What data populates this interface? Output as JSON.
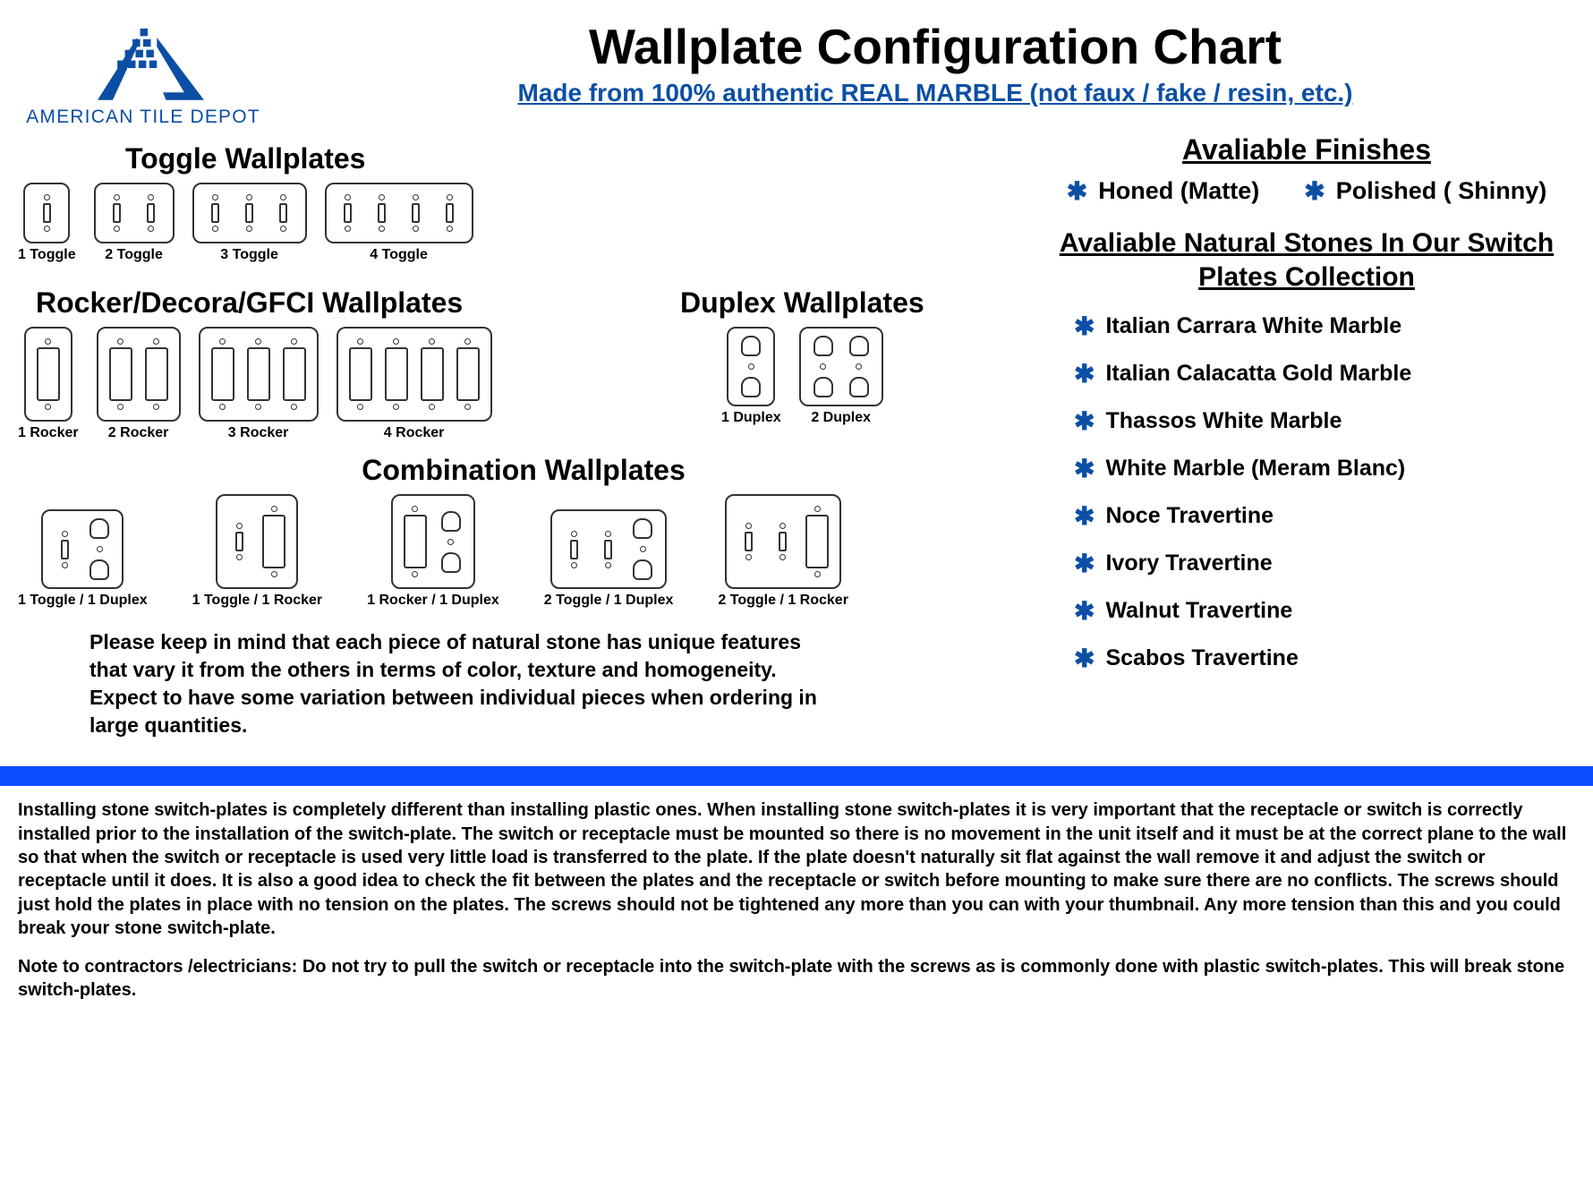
{
  "brand": {
    "name": "AMERICAN TILE DEPOT",
    "logo_color": "#0b4fa5"
  },
  "title": "Wallplate Configuration Chart",
  "subtitle": "Made from 100% authentic REAL MARBLE (not faux / fake / resin, etc.)",
  "colors": {
    "accent": "#0b4fa5",
    "bar": "#0b4fff",
    "text": "#000000",
    "bg": "#ffffff",
    "outline": "#333333"
  },
  "sections": {
    "toggle": {
      "heading": "Toggle Wallplates",
      "items": [
        {
          "label": "1 Toggle",
          "gangs": [
            "toggle"
          ]
        },
        {
          "label": "2 Toggle",
          "gangs": [
            "toggle",
            "toggle"
          ]
        },
        {
          "label": "3 Toggle",
          "gangs": [
            "toggle",
            "toggle",
            "toggle"
          ]
        },
        {
          "label": "4 Toggle",
          "gangs": [
            "toggle",
            "toggle",
            "toggle",
            "toggle"
          ]
        }
      ]
    },
    "rocker": {
      "heading": "Rocker/Decora/GFCI Wallplates",
      "items": [
        {
          "label": "1 Rocker",
          "gangs": [
            "rocker"
          ]
        },
        {
          "label": "2 Rocker",
          "gangs": [
            "rocker",
            "rocker"
          ]
        },
        {
          "label": "3 Rocker",
          "gangs": [
            "rocker",
            "rocker",
            "rocker"
          ]
        },
        {
          "label": "4 Rocker",
          "gangs": [
            "rocker",
            "rocker",
            "rocker",
            "rocker"
          ]
        }
      ]
    },
    "duplex": {
      "heading": "Duplex Wallplates",
      "items": [
        {
          "label": "1 Duplex",
          "gangs": [
            "duplex"
          ]
        },
        {
          "label": "2 Duplex",
          "gangs": [
            "duplex",
            "duplex"
          ]
        }
      ]
    },
    "combo": {
      "heading": "Combination Wallplates",
      "items": [
        {
          "label": "1 Toggle / 1 Duplex",
          "gangs": [
            "toggle",
            "duplex"
          ]
        },
        {
          "label": "1 Toggle / 1 Rocker",
          "gangs": [
            "toggle",
            "rocker"
          ]
        },
        {
          "label": "1 Rocker / 1 Duplex",
          "gangs": [
            "rocker",
            "duplex"
          ]
        },
        {
          "label": "2 Toggle / 1 Duplex",
          "gangs": [
            "toggle",
            "toggle",
            "duplex"
          ]
        },
        {
          "label": "2 Toggle / 1 Rocker",
          "gangs": [
            "toggle",
            "toggle",
            "rocker"
          ]
        }
      ]
    }
  },
  "finishes": {
    "heading": "Avaliable Finishes",
    "items": [
      "Honed (Matte)",
      "Polished ( Shinny)"
    ]
  },
  "stones": {
    "heading": "Avaliable Natural Stones In Our Switch Plates Collection",
    "items": [
      "Italian Carrara White Marble",
      "Italian Calacatta Gold Marble",
      "Thassos White Marble",
      "White Marble (Meram Blanc)",
      "Noce Travertine",
      "Ivory Travertine",
      "Walnut Travertine",
      "Scabos Travertine"
    ]
  },
  "disclaimer": "Please keep in mind that each piece of natural stone has unique features that vary it from the others in terms of color, texture and homogeneity. Expect to have some variation between individual pieces when ordering in large quantities.",
  "installation": {
    "p1": "Installing stone switch-plates is completely different than installing plastic ones. When installing stone switch-plates it is very important that the receptacle or switch is correctly installed prior to the installation of the switch-plate. The switch or receptacle must be mounted so there is no movement in the unit itself and it must be at the correct plane to the wall so that when the switch or receptacle is used very little load is transferred to the plate. If the plate doesn't naturally sit flat against the wall remove it and adjust the switch or receptacle until it does. It is also a good idea to check the fit between the plates and the receptacle or switch before mounting to make sure there are no conflicts. The screws should just hold the plates in place with no tension on the plates. The screws should not be tightened any more than you can with your thumbnail. Any more tension than this and you could break your stone switch-plate.",
    "p2": "Note to contractors /electricians: Do not try to pull the switch or receptacle into the switch-plate with the screws as is commonly done with plastic switch-plates. This will break stone switch-plates."
  }
}
